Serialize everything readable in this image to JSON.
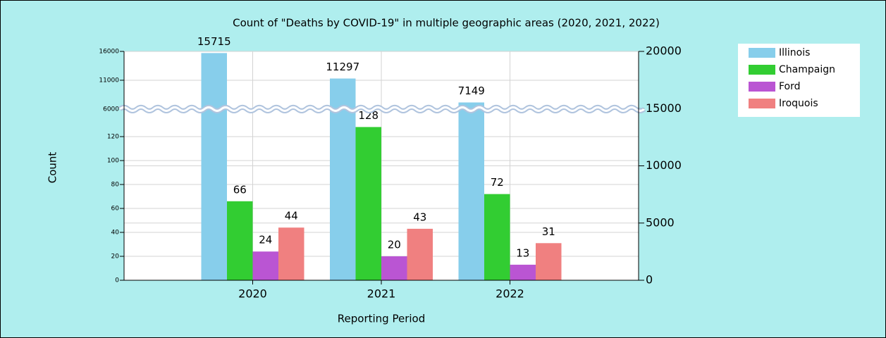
{
  "chart_data": {
    "type": "bar",
    "title": "Count of \"Deaths by COVID-19\" in multiple geographic areas (2020, 2021, 2022)",
    "xlabel": "Reporting Period",
    "ylabel": "Count",
    "categories": [
      "2020",
      "2021",
      "2022"
    ],
    "series": [
      {
        "name": "Illinois",
        "color": "#87ceeb",
        "values": [
          15715,
          11297,
          7149
        ]
      },
      {
        "name": "Champaign",
        "color": "#32cd32",
        "values": [
          66,
          128,
          72
        ]
      },
      {
        "name": "Ford",
        "color": "#ba55d3",
        "values": [
          24,
          20,
          13
        ]
      },
      {
        "name": "Iroquois",
        "color": "#f08080",
        "values": [
          44,
          43,
          31
        ]
      }
    ],
    "ylim": [
      0,
      16000
    ],
    "ybreak": [
      143,
      6000
    ],
    "yticks": [
      0,
      20,
      40,
      60,
      80,
      100,
      120,
      6000,
      11000,
      16000
    ],
    "y2lim": [
      0,
      20000
    ],
    "y2ticks": [
      0,
      5000,
      10000,
      15000,
      20000
    ],
    "grid": true,
    "legend": "upper right"
  }
}
